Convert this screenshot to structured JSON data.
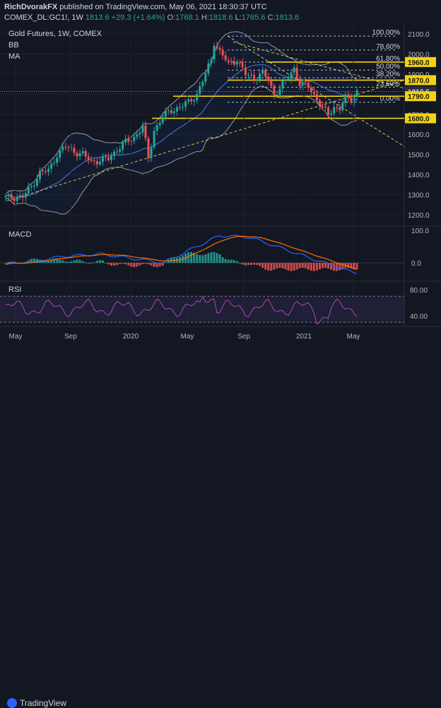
{
  "header": {
    "author": "RichDvorakFX",
    "published_text": "published on TradingView.com, May 06, 2021 18:30:37 UTC",
    "symbol": "COMEX_DL:GC1!, 1W",
    "last": "1813.6",
    "change": "+29.3 (+1.64%)",
    "o_label": "O:",
    "o": "1768.1",
    "h_label": "H:",
    "h": "1818.6",
    "l_label": "L:",
    "l": "1765.6",
    "c_label": "C:",
    "c": "1813.6"
  },
  "main_pane": {
    "title": "Gold Futures, 1W, COMEX",
    "indicator_bb": "BB",
    "indicator_ma": "MA",
    "price_ticks": [
      "2100.0",
      "2000.0",
      "1900.0",
      "1800.0",
      "1700.0",
      "1600.0",
      "1500.0",
      "1400.0",
      "1300.0",
      "1200.0"
    ],
    "fib_labels": [
      {
        "text": "100.00%",
        "price": 2089
      },
      {
        "text": "78.60%",
        "price": 2020
      },
      {
        "text": "61.80%",
        "price": 1960
      },
      {
        "text": "50.00%",
        "price": 1920
      },
      {
        "text": "38.20%",
        "price": 1882
      },
      {
        "text": "23.60%",
        "price": 1835
      },
      {
        "text": "0.00%",
        "price": 1760
      }
    ],
    "price_boxes": [
      {
        "text": "1960.0",
        "price": 1960,
        "color": "#f5d20d"
      },
      {
        "text": "1870.0",
        "price": 1870,
        "color": "#f5d20d"
      },
      {
        "text": "1813.6",
        "price": 1813.6,
        "color": "#1e2b3b"
      },
      {
        "text": "1790.0",
        "price": 1790,
        "color": "#f5d20d"
      },
      {
        "text": "1680.0",
        "price": 1680,
        "color": "#f5d20d"
      }
    ]
  },
  "macd_pane": {
    "title": "MACD",
    "ticks": [
      "100.0",
      "0.0"
    ]
  },
  "rsi_pane": {
    "title": "RSI",
    "ticks": [
      "80.00",
      "40.00"
    ]
  },
  "time_axis": {
    "labels": [
      "May",
      "Sep",
      "2020",
      "May",
      "Sep",
      "2021",
      "May"
    ]
  },
  "footer": {
    "brand": "TradingView"
  },
  "colors": {
    "background": "#131722",
    "up": "#26a69a",
    "down": "#ef5350",
    "fib": "#f5d20d",
    "bb": "#9598a1",
    "ma": "#2962ff"
  },
  "chart_data": {
    "type": "line",
    "title": "Gold Futures, 1W, COMEX",
    "x": [
      "2019-05",
      "2019-07",
      "2019-09",
      "2019-11",
      "2020-01",
      "2020-03",
      "2020-05",
      "2020-07",
      "2020-08",
      "2020-10",
      "2020-12",
      "2021-01",
      "2021-02",
      "2021-03",
      "2021-04",
      "2021-05"
    ],
    "series": [
      {
        "values": [
          1285,
          1400,
          1520,
          1470,
          1560,
          1580,
          1730,
          1900,
          2070,
          1900,
          1860,
          1930,
          1830,
          1700,
          1745,
          1813.6
        ]
      }
    ],
    "ylim": [
      1150,
      2150
    ],
    "xlabel": "",
    "ylabel": ""
  }
}
